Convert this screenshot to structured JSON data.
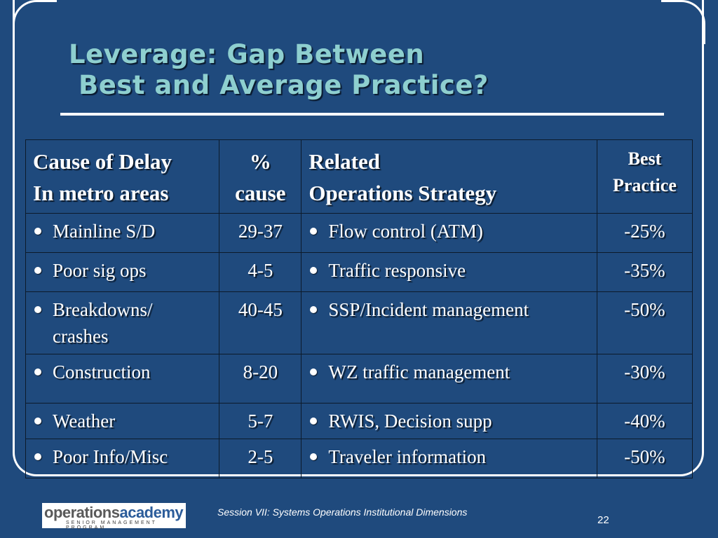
{
  "slide": {
    "title_line1": "Leverage: Gap Between",
    "title_line2": "Best and Average Practice?",
    "colors": {
      "background": "#1f4a7d",
      "title": "#8ecfcf",
      "text": "#ffffff"
    }
  },
  "table": {
    "headers": {
      "cause_line1": "Cause of Delay",
      "cause_line2": "In metro areas",
      "pct_line1": "%",
      "pct_line2": "cause",
      "strategy_line1": "Related",
      "strategy_line2": "Operations Strategy",
      "best_line1": "Best",
      "best_line2": "Practice"
    },
    "rows": [
      {
        "cause": "Mainline S/D",
        "pct": "29-37",
        "strategy": "Flow control (ATM)",
        "best": "-25%"
      },
      {
        "cause": "Poor sig ops",
        "pct": "4-5",
        "strategy": "Traffic responsive",
        "best": "-35%"
      },
      {
        "cause": "Breakdowns/ crashes",
        "pct": "40-45",
        "strategy": "SSP/Incident management",
        "best": "-50%"
      },
      {
        "cause": "Construction",
        "pct": "8-20",
        "strategy": "WZ traffic management",
        "best": "-30%"
      },
      {
        "cause": "Weather",
        "pct": "5-7",
        "strategy": "RWIS, Decision supp",
        "best": "-40%"
      },
      {
        "cause": "Poor Info/Misc",
        "pct": "2-5",
        "strategy": "Traveler information",
        "best": "-50%"
      }
    ]
  },
  "footer": {
    "logo_part1": "operations",
    "logo_part2": "academy",
    "logo_sub": "SENIOR MANAGEMENT PROGRAM",
    "session_text": "Session VII: Systems Operations Institutional Dimensions",
    "page_number": "22"
  }
}
